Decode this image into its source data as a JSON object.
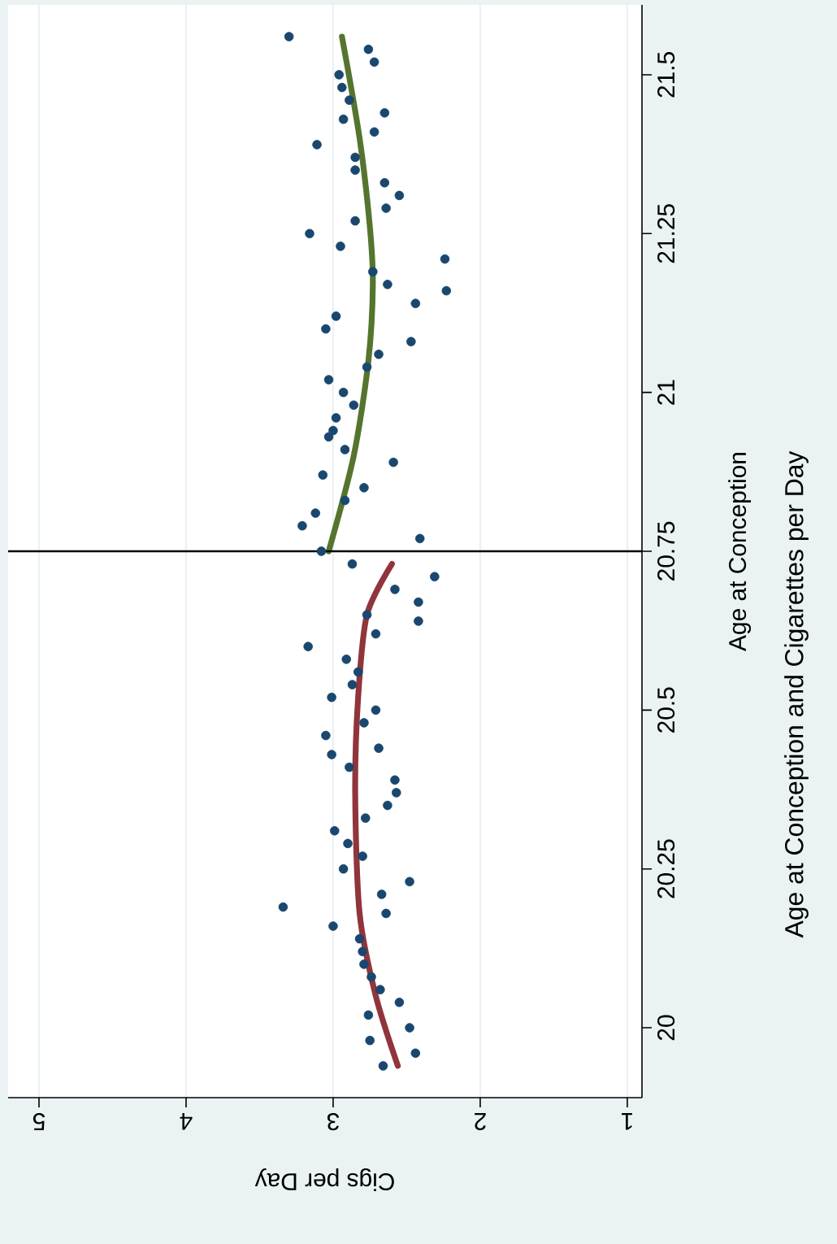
{
  "chart_data": {
    "type": "scatter",
    "title": "Age at Conception and Cigarettes per Day",
    "xlabel": "Cigs per Day",
    "ylabel": "Age at Conception",
    "xlim": [
      5.21,
      0.9
    ],
    "ylim": [
      19.89,
      21.61
    ],
    "xticks": [
      5,
      4,
      3,
      2,
      1
    ],
    "yticks": [
      20,
      20.25,
      20.5,
      20.75,
      21,
      21.25,
      21.5
    ],
    "grid": "x",
    "ref_lines": [
      {
        "axis": "y",
        "value": 20.75,
        "color": "#000000"
      }
    ],
    "series": [
      {
        "type": "scatter",
        "color": "#1a476f",
        "marker": "circle",
        "x": [
          3.3,
          2.76,
          2.72,
          2.96,
          2.94,
          2.89,
          2.65,
          2.93,
          2.72,
          3.11,
          2.85,
          2.85,
          2.65,
          2.55,
          2.64,
          2.85,
          3.16,
          2.95,
          2.24,
          2.73,
          2.63,
          2.23,
          2.44,
          2.98,
          3.05,
          2.47,
          2.69,
          2.77,
          3.03,
          2.93,
          2.86,
          2.98,
          3.0,
          3.03,
          2.92,
          2.59,
          3.07,
          2.79,
          2.92,
          3.12,
          3.21,
          2.41,
          3.08,
          2.87,
          2.31,
          2.58,
          2.42,
          2.77,
          2.42,
          2.71,
          3.17,
          2.91,
          2.83,
          2.87,
          3.01,
          2.71,
          2.79,
          3.05,
          2.69,
          3.01,
          2.89,
          2.58,
          2.57,
          2.63,
          2.78,
          2.99,
          2.9,
          2.8,
          2.93,
          2.48,
          2.67,
          3.34,
          2.64,
          3.0,
          2.82,
          2.8,
          2.79,
          2.74,
          2.68,
          2.55,
          2.76,
          2.48,
          2.75,
          2.44,
          2.66
        ],
        "values": [
          21.56,
          21.54,
          21.52,
          21.5,
          21.48,
          21.46,
          21.44,
          21.43,
          21.41,
          21.39,
          21.37,
          21.35,
          21.33,
          21.31,
          21.29,
          21.27,
          21.25,
          21.23,
          21.21,
          21.19,
          21.17,
          21.16,
          21.14,
          21.12,
          21.1,
          21.08,
          21.06,
          21.04,
          21.02,
          21.0,
          20.98,
          20.96,
          20.94,
          20.93,
          20.91,
          20.89,
          20.87,
          20.85,
          20.83,
          20.81,
          20.79,
          20.77,
          20.75,
          20.73,
          20.71,
          20.69,
          20.67,
          20.65,
          20.64,
          20.62,
          20.6,
          20.58,
          20.56,
          20.54,
          20.52,
          20.5,
          20.48,
          20.46,
          20.44,
          20.43,
          20.41,
          20.39,
          20.37,
          20.35,
          20.33,
          20.31,
          20.29,
          20.27,
          20.25,
          20.23,
          20.21,
          20.19,
          20.18,
          20.16,
          20.14,
          20.12,
          20.1,
          20.08,
          20.06,
          20.04,
          20.02,
          20.0,
          19.98,
          19.96,
          19.94
        ]
      },
      {
        "type": "line",
        "color": "#90353b",
        "marker": "none",
        "x": [
          2.56,
          2.71,
          2.82,
          2.85,
          2.83,
          2.77,
          2.6
        ],
        "values": [
          19.94,
          20.05,
          20.18,
          20.37,
          20.52,
          20.65,
          20.73
        ]
      },
      {
        "type": "line",
        "color": "#55752f",
        "marker": "none",
        "x": [
          3.03,
          2.86,
          2.76,
          2.73,
          2.75,
          2.82,
          2.94
        ],
        "values": [
          20.75,
          20.9,
          21.05,
          21.17,
          21.26,
          21.4,
          21.56
        ]
      }
    ]
  }
}
